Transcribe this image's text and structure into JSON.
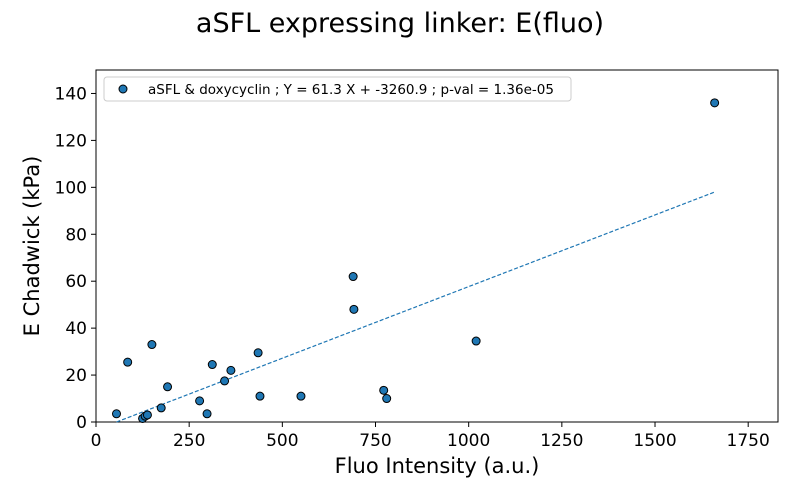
{
  "chart_data": {
    "type": "scatter",
    "title": "aSFL expressing linker: E(fluo)",
    "xlabel": "Fluo Intensity (a.u.)",
    "ylabel": "E Chadwick (kPa)",
    "xlim": [
      0,
      1830
    ],
    "ylim": [
      0,
      150
    ],
    "xticks": [
      0,
      250,
      500,
      750,
      1000,
      1250,
      1500,
      1750
    ],
    "yticks": [
      0,
      20,
      40,
      60,
      80,
      100,
      120,
      140
    ],
    "grid": false,
    "legend_position": "top-left",
    "series": [
      {
        "name": "aSFL & doxycyclin ; Y = 61.3 X + -3260.9 ; p-val = 1.36e-05",
        "color": "#1f77b4",
        "edge_color": "#000000",
        "points": [
          {
            "x": 55,
            "y": 3.5
          },
          {
            "x": 85,
            "y": 25.5
          },
          {
            "x": 125,
            "y": 1.5
          },
          {
            "x": 132,
            "y": 2.5
          },
          {
            "x": 138,
            "y": 3
          },
          {
            "x": 150,
            "y": 33
          },
          {
            "x": 175,
            "y": 6
          },
          {
            "x": 192,
            "y": 15
          },
          {
            "x": 278,
            "y": 9
          },
          {
            "x": 298,
            "y": 3.5
          },
          {
            "x": 312,
            "y": 24.5
          },
          {
            "x": 345,
            "y": 17.5
          },
          {
            "x": 362,
            "y": 22
          },
          {
            "x": 435,
            "y": 29.5
          },
          {
            "x": 440,
            "y": 11
          },
          {
            "x": 550,
            "y": 11
          },
          {
            "x": 690,
            "y": 62
          },
          {
            "x": 692,
            "y": 48
          },
          {
            "x": 772,
            "y": 13.5
          },
          {
            "x": 780,
            "y": 10
          },
          {
            "x": 1020,
            "y": 34.5
          },
          {
            "x": 1660,
            "y": 136
          }
        ]
      }
    ],
    "fit_line": {
      "style": "dashed",
      "color": "#1f77b4",
      "points": [
        {
          "x": 55,
          "y": 0
        },
        {
          "x": 1660,
          "y": 98
        }
      ]
    }
  }
}
